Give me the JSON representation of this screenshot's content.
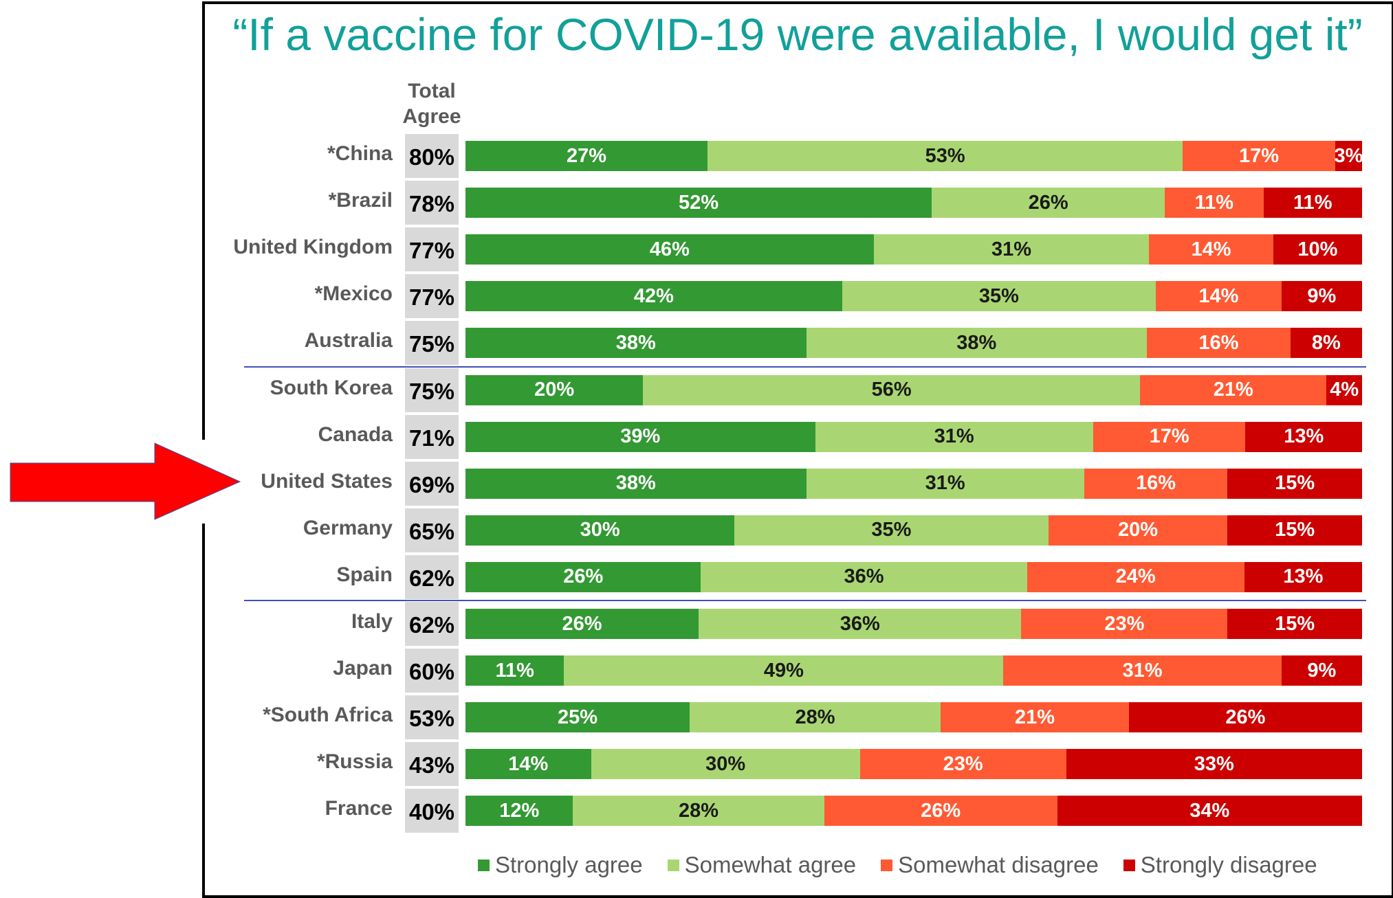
{
  "title": "“If a vaccine for COVID-19 were available, I would get it”",
  "chart_data": {
    "type": "bar",
    "orientation": "horizontal-stacked-100",
    "title": "“If a vaccine for COVID-19 were available, I would get it”",
    "total_header": "Total Agree",
    "series_names": [
      "Strongly agree",
      "Somewhat agree",
      "Somewhat disagree",
      "Strongly disagree"
    ],
    "colors": [
      "#339933",
      "#a9d672",
      "#ff5a33",
      "#cc0000"
    ],
    "label_colors": [
      "#ffffff",
      "#1a1a1a",
      "#ffffff",
      "#ffffff"
    ],
    "rows": [
      {
        "country": "*China",
        "total": "80%",
        "values": [
          27,
          53,
          17,
          3
        ]
      },
      {
        "country": "*Brazil",
        "total": "78%",
        "values": [
          52,
          26,
          11,
          11
        ]
      },
      {
        "country": "United Kingdom",
        "total": "77%",
        "values": [
          46,
          31,
          14,
          10
        ]
      },
      {
        "country": "*Mexico",
        "total": "77%",
        "values": [
          42,
          35,
          14,
          9
        ]
      },
      {
        "country": "Australia",
        "total": "75%",
        "values": [
          38,
          38,
          16,
          8
        ]
      },
      {
        "country": "South Korea",
        "total": "75%",
        "values": [
          20,
          56,
          21,
          4
        ]
      },
      {
        "country": "Canada",
        "total": "71%",
        "values": [
          39,
          31,
          17,
          13
        ]
      },
      {
        "country": "United States",
        "total": "69%",
        "values": [
          38,
          31,
          16,
          15
        ]
      },
      {
        "country": "Germany",
        "total": "65%",
        "values": [
          30,
          35,
          20,
          15
        ]
      },
      {
        "country": "Spain",
        "total": "62%",
        "values": [
          26,
          36,
          24,
          13
        ]
      },
      {
        "country": "Italy",
        "total": "62%",
        "values": [
          26,
          36,
          23,
          15
        ]
      },
      {
        "country": "Japan",
        "total": "60%",
        "values": [
          11,
          49,
          31,
          9
        ]
      },
      {
        "country": "*South Africa",
        "total": "53%",
        "values": [
          25,
          28,
          21,
          26
        ]
      },
      {
        "country": "*Russia",
        "total": "43%",
        "values": [
          14,
          30,
          23,
          33
        ]
      },
      {
        "country": "France",
        "total": "40%",
        "values": [
          12,
          28,
          26,
          34
        ]
      }
    ],
    "separators_after_rows": [
      4,
      9
    ],
    "highlighted_country": "United States",
    "legend_position": "bottom"
  },
  "legend": [
    "Strongly agree",
    "Somewhat agree",
    "Somewhat disagree",
    "Strongly disagree"
  ]
}
